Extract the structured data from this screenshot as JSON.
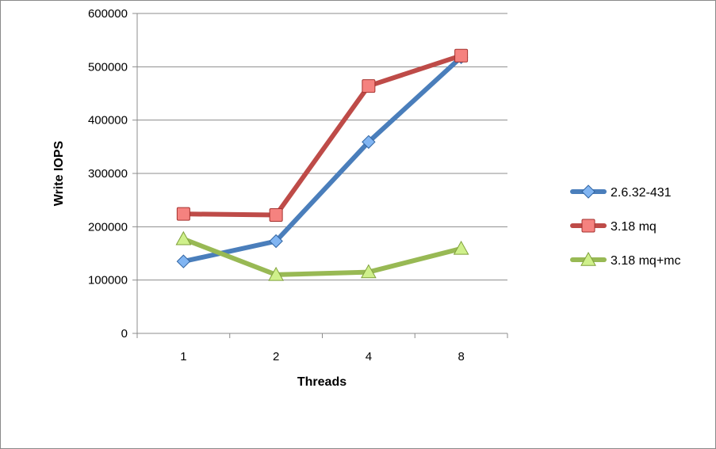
{
  "chart_data": {
    "type": "line",
    "xlabel": "Threads",
    "ylabel": "Write IOPS",
    "categories": [
      "1",
      "2",
      "4",
      "8"
    ],
    "ylim": [
      0,
      600000
    ],
    "yticks": [
      "0",
      "100000",
      "200000",
      "300000",
      "400000",
      "500000",
      "600000"
    ],
    "grid": "horizontal",
    "legend_position": "right",
    "series": [
      {
        "name": "2.6.32-431",
        "values": [
          135000,
          173000,
          359000,
          518000
        ],
        "color": "#4a7ebb",
        "marker": "diamond"
      },
      {
        "name": "3.18 mq",
        "values": [
          224000,
          222000,
          464000,
          521000
        ],
        "color": "#be4b48",
        "marker": "square"
      },
      {
        "name": "3.18 mq+mc",
        "values": [
          177000,
          110000,
          115000,
          159000
        ],
        "color": "#98b954",
        "marker": "triangle"
      }
    ]
  }
}
